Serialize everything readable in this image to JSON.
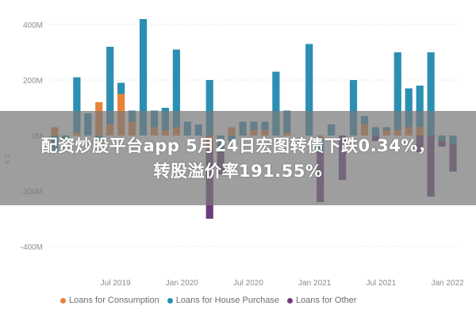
{
  "banner": {
    "line1": "配资炒股平台app 5月24日宏图转债下跌0.34%，",
    "line2": "转股溢价率191.55%"
  },
  "chart_data": {
    "type": "bar",
    "stacked": true,
    "ylabel": "€ C",
    "ylim": [
      -450,
      450
    ],
    "yticks": [
      400,
      200,
      0,
      -200,
      -400
    ],
    "ytick_labels": [
      "400M",
      "200M",
      "0M",
      "-200M",
      "-400M"
    ],
    "x_tick_labels": [
      "Jul 2019",
      "Jan 2020",
      "Jul 2020",
      "Jan 2021",
      "Jul 2021",
      "Jan 2022"
    ],
    "x_tick_positions": [
      6,
      12,
      18,
      24,
      30,
      36
    ],
    "categories_count": 37,
    "legend_position": "bottom-left",
    "series": [
      {
        "name": "Loans for Consumption",
        "color": "#e8833a",
        "values": [
          30,
          0,
          10,
          0,
          120,
          40,
          150,
          50,
          0,
          30,
          20,
          30,
          0,
          0,
          -50,
          0,
          30,
          0,
          20,
          20,
          0,
          10,
          0,
          0,
          -10,
          0,
          0,
          0,
          40,
          0,
          20,
          20,
          30,
          30,
          0,
          0,
          0
        ]
      },
      {
        "name": "Loans for House Purchase",
        "color": "#2b8fb3",
        "values": [
          -60,
          -20,
          200,
          80,
          -10,
          280,
          40,
          40,
          420,
          60,
          80,
          280,
          50,
          40,
          200,
          -60,
          -20,
          50,
          30,
          30,
          230,
          80,
          0,
          330,
          -50,
          40,
          0,
          200,
          30,
          30,
          10,
          280,
          140,
          150,
          300,
          -20,
          -30
        ]
      },
      {
        "name": "Loans for Other",
        "color": "#6e3c7d",
        "values": [
          0,
          0,
          0,
          0,
          0,
          0,
          0,
          0,
          0,
          0,
          0,
          0,
          0,
          0,
          -250,
          -80,
          0,
          0,
          0,
          0,
          0,
          0,
          0,
          0,
          -180,
          0,
          -160,
          0,
          0,
          -20,
          0,
          0,
          0,
          -60,
          -220,
          -20,
          -100
        ]
      }
    ]
  }
}
